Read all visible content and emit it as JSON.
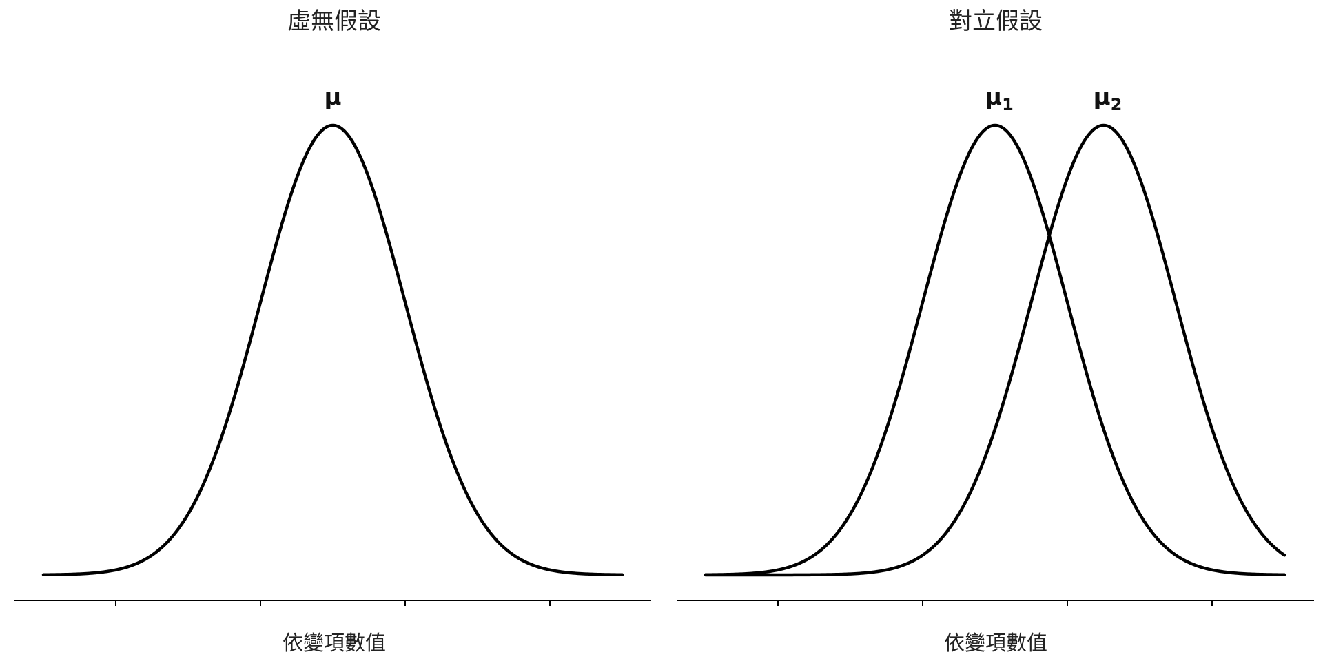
{
  "chart_data": [
    {
      "type": "line",
      "title": "虛無假設",
      "xlabel": "依變項數值",
      "ylabel": "",
      "xlim": [
        -4,
        4
      ],
      "ylim": [
        0,
        0.4
      ],
      "x_ticks": [
        -3,
        -1,
        1,
        3
      ],
      "tick_labels_shown": false,
      "peak_labels": [
        {
          "text": "μ",
          "sub": "",
          "x": 0
        }
      ],
      "series": [
        {
          "mean": 0,
          "sd": 1
        }
      ]
    },
    {
      "type": "line",
      "title": "對立假設",
      "xlabel": "依變項數值",
      "ylabel": "",
      "xlim": [
        -4,
        4
      ],
      "ylim": [
        0,
        0.4
      ],
      "x_ticks": [
        -3,
        -1,
        1,
        3
      ],
      "tick_labels_shown": false,
      "peak_labels": [
        {
          "text": "μ",
          "sub": "1",
          "x": 0
        },
        {
          "text": "μ",
          "sub": "2",
          "x": 1.5
        }
      ],
      "series": [
        {
          "mean": 0,
          "sd": 1
        },
        {
          "mean": 1.5,
          "sd": 1
        }
      ]
    }
  ]
}
